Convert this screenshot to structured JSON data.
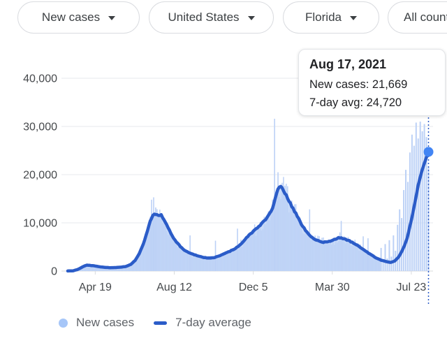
{
  "filters": {
    "pills": [
      {
        "label": "New cases"
      },
      {
        "label": "United States"
      },
      {
        "label": "Florida"
      },
      {
        "label": "All counties"
      }
    ]
  },
  "tooltip": {
    "title": "Aug 17, 2021",
    "line1": "New cases: 21,669",
    "line2": "7-day avg: 24,720"
  },
  "legend": [
    {
      "label": "New cases",
      "swatch": "dot",
      "color": "#a6c6f8"
    },
    {
      "label": "7-day average",
      "swatch": "line",
      "color": "#2b5cc8"
    }
  ],
  "colors": {
    "bar": "#bcd1f6",
    "area": "#c9dbf8",
    "avg_line": "#2b5cc8",
    "endpoint_dot": "#4285f4",
    "grid": "#e7e9ec",
    "zero_line": "#d9dbde",
    "axis_text": "#46494c",
    "pill_border": "#dadce0",
    "pill_text": "#3c4043"
  },
  "chart_data": {
    "type": "combo_bar_line",
    "title": "",
    "x_axis": {
      "domain_days": [
        0,
        525
      ],
      "tick_days": [
        40,
        155,
        270,
        385,
        500
      ],
      "tick_labels": [
        "Apr 19",
        "Aug 12",
        "Dec 5",
        "Mar 30",
        "Jul 23"
      ]
    },
    "y_axis": {
      "range": [
        0,
        40000
      ],
      "ticks": [
        0,
        10000,
        20000,
        30000,
        40000
      ],
      "tick_labels": [
        "0",
        "10,000",
        "20,000",
        "30,000",
        "40,000"
      ],
      "grid": true
    },
    "series": [
      {
        "name": "New cases",
        "type": "bar",
        "color": "#bcd1f6",
        "spike_bars": [
          [
            122,
            14800
          ],
          [
            125,
            15300
          ],
          [
            128,
            13200
          ],
          [
            178,
            7400
          ],
          [
            215,
            6300
          ],
          [
            247,
            8800
          ],
          [
            301,
            31600
          ],
          [
            306,
            20500
          ],
          [
            352,
            12800
          ],
          [
            398,
            10400
          ],
          [
            430,
            7200
          ],
          [
            437,
            6800
          ]
        ],
        "weekly_report_bars": [
          [
            456,
            4800
          ],
          [
            459,
            2200
          ],
          [
            462,
            5600
          ],
          [
            465,
            2600
          ],
          [
            468,
            6400
          ],
          [
            471,
            3000
          ],
          [
            474,
            7400
          ],
          [
            477,
            4200
          ],
          [
            480,
            9600
          ],
          [
            483,
            12800
          ],
          [
            486,
            11000
          ],
          [
            489,
            16800
          ],
          [
            492,
            21000
          ],
          [
            495,
            18500
          ],
          [
            498,
            24600
          ],
          [
            501,
            28300
          ],
          [
            504,
            26000
          ],
          [
            507,
            30800
          ],
          [
            510,
            27500
          ],
          [
            513,
            31000
          ],
          [
            516,
            29000
          ],
          [
            519,
            30500
          ],
          [
            522,
            27800
          ],
          [
            525,
            21669
          ]
        ]
      },
      {
        "name": "7-day average",
        "type": "line",
        "color": "#2b5cc8",
        "width": 4.5,
        "points": [
          [
            0,
            10
          ],
          [
            8,
            60
          ],
          [
            15,
            350
          ],
          [
            22,
            900
          ],
          [
            28,
            1250
          ],
          [
            34,
            1150
          ],
          [
            40,
            1050
          ],
          [
            48,
            850
          ],
          [
            55,
            760
          ],
          [
            62,
            700
          ],
          [
            70,
            730
          ],
          [
            78,
            820
          ],
          [
            85,
            960
          ],
          [
            92,
            1400
          ],
          [
            98,
            2200
          ],
          [
            104,
            3600
          ],
          [
            110,
            5600
          ],
          [
            116,
            8300
          ],
          [
            121,
            10800
          ],
          [
            126,
            11900
          ],
          [
            131,
            11500
          ],
          [
            136,
            11600
          ],
          [
            141,
            10400
          ],
          [
            146,
            9000
          ],
          [
            151,
            7600
          ],
          [
            155,
            6600
          ],
          [
            160,
            5700
          ],
          [
            165,
            4900
          ],
          [
            172,
            4100
          ],
          [
            180,
            3600
          ],
          [
            188,
            3200
          ],
          [
            196,
            2850
          ],
          [
            204,
            2700
          ],
          [
            212,
            2750
          ],
          [
            220,
            3100
          ],
          [
            228,
            3600
          ],
          [
            236,
            4100
          ],
          [
            244,
            4700
          ],
          [
            252,
            5600
          ],
          [
            260,
            6900
          ],
          [
            268,
            8000
          ],
          [
            276,
            8900
          ],
          [
            284,
            10100
          ],
          [
            290,
            11000
          ],
          [
            296,
            12300
          ],
          [
            301,
            14500
          ],
          [
            306,
            17000
          ],
          [
            310,
            17600
          ],
          [
            314,
            16800
          ],
          [
            320,
            15100
          ],
          [
            327,
            13200
          ],
          [
            334,
            11400
          ],
          [
            341,
            9500
          ],
          [
            348,
            8100
          ],
          [
            355,
            7000
          ],
          [
            362,
            6400
          ],
          [
            370,
            6000
          ],
          [
            378,
            6000
          ],
          [
            386,
            6400
          ],
          [
            394,
            6900
          ],
          [
            400,
            6800
          ],
          [
            408,
            6400
          ],
          [
            416,
            5800
          ],
          [
            424,
            5100
          ],
          [
            432,
            4300
          ],
          [
            440,
            3500
          ],
          [
            448,
            2800
          ],
          [
            456,
            2250
          ],
          [
            464,
            1950
          ],
          [
            470,
            1800
          ],
          [
            476,
            2100
          ],
          [
            482,
            3000
          ],
          [
            488,
            4600
          ],
          [
            494,
            6800
          ],
          [
            500,
            10500
          ],
          [
            505,
            14000
          ],
          [
            510,
            17800
          ],
          [
            515,
            20600
          ],
          [
            520,
            22800
          ],
          [
            525,
            24720
          ]
        ]
      }
    ],
    "endpoint": {
      "day": 525,
      "avg_value": 24720,
      "daily_value": 21669,
      "marker_color": "#4285f4",
      "crosshair": true
    },
    "legend_position": "bottom"
  }
}
